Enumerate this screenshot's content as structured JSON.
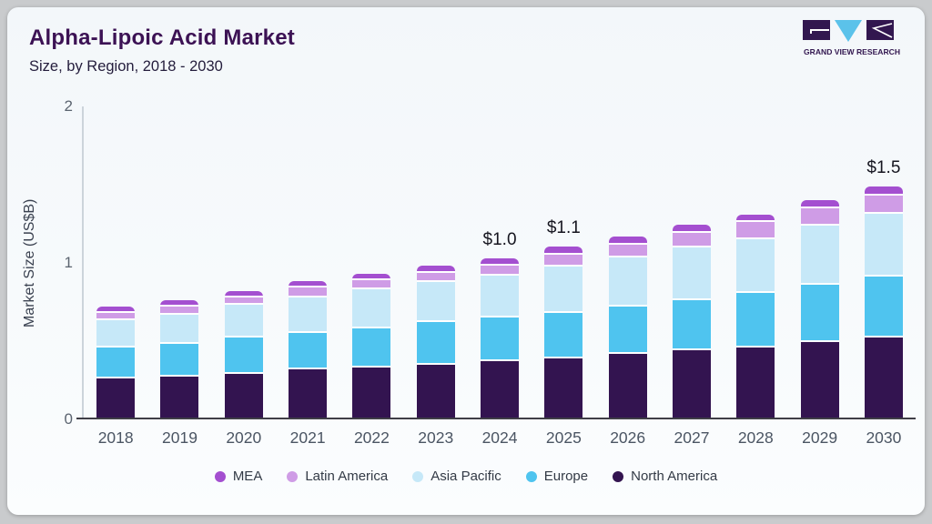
{
  "header": {
    "title": "Alpha-Lipoic Acid Market",
    "subtitle": "Size, by Region, 2018 - 2030",
    "logo_text": "GRAND VIEW RESEARCH"
  },
  "chart_data": {
    "type": "bar",
    "stacked": true,
    "title": "Alpha-Lipoic Acid Market Size, by Region, 2018 - 2030",
    "xlabel": "",
    "ylabel": "Market Size (US$B)",
    "ylim": [
      0,
      2
    ],
    "yticks": [
      0,
      1,
      2
    ],
    "grid": false,
    "legend_position": "bottom",
    "categories": [
      2018,
      2019,
      2020,
      2021,
      2022,
      2023,
      2024,
      2025,
      2026,
      2027,
      2028,
      2029,
      2030
    ],
    "series": [
      {
        "name": "North America",
        "color": "#331450",
        "values": [
          0.25,
          0.26,
          0.28,
          0.31,
          0.32,
          0.34,
          0.36,
          0.38,
          0.41,
          0.43,
          0.45,
          0.48,
          0.51
        ]
      },
      {
        "name": "Europe",
        "color": "#4fc4ef",
        "values": [
          0.2,
          0.21,
          0.23,
          0.23,
          0.25,
          0.27,
          0.28,
          0.29,
          0.3,
          0.32,
          0.345,
          0.37,
          0.39
        ]
      },
      {
        "name": "Asia Pacific",
        "color": "#c6e8f8",
        "values": [
          0.17,
          0.19,
          0.21,
          0.23,
          0.25,
          0.255,
          0.27,
          0.295,
          0.315,
          0.34,
          0.345,
          0.375,
          0.4
        ]
      },
      {
        "name": "Latin America",
        "color": "#cf9ce6",
        "values": [
          0.05,
          0.05,
          0.05,
          0.06,
          0.06,
          0.06,
          0.06,
          0.075,
          0.08,
          0.09,
          0.11,
          0.11,
          0.12
        ]
      },
      {
        "name": "MEA",
        "color": "#a44fd0",
        "values": [
          0.04,
          0.04,
          0.04,
          0.04,
          0.04,
          0.045,
          0.05,
          0.055,
          0.05,
          0.05,
          0.05,
          0.055,
          0.055
        ]
      }
    ],
    "bar_labels": [
      "",
      "",
      "",
      "",
      "",
      "",
      "$1.0",
      "$1.1",
      "",
      "",
      "",
      "",
      "$1.5"
    ],
    "legend": [
      "MEA",
      "Latin America",
      "Asia Pacific",
      "Europe",
      "North America"
    ]
  },
  "colors": {
    "frame_bg": "#c9cbcd",
    "card_bg": "#f7fafc",
    "title": "#3c1254",
    "subtitle": "#241d3c",
    "x_axis_line": "#3f3e46",
    "y_axis_line": "#ccd4db",
    "tick_text": "#4b5563",
    "value_label": "#15151f",
    "legend_text": "#333a46",
    "logo_purple": "#32174f",
    "logo_blue": "#5bc2ea"
  }
}
